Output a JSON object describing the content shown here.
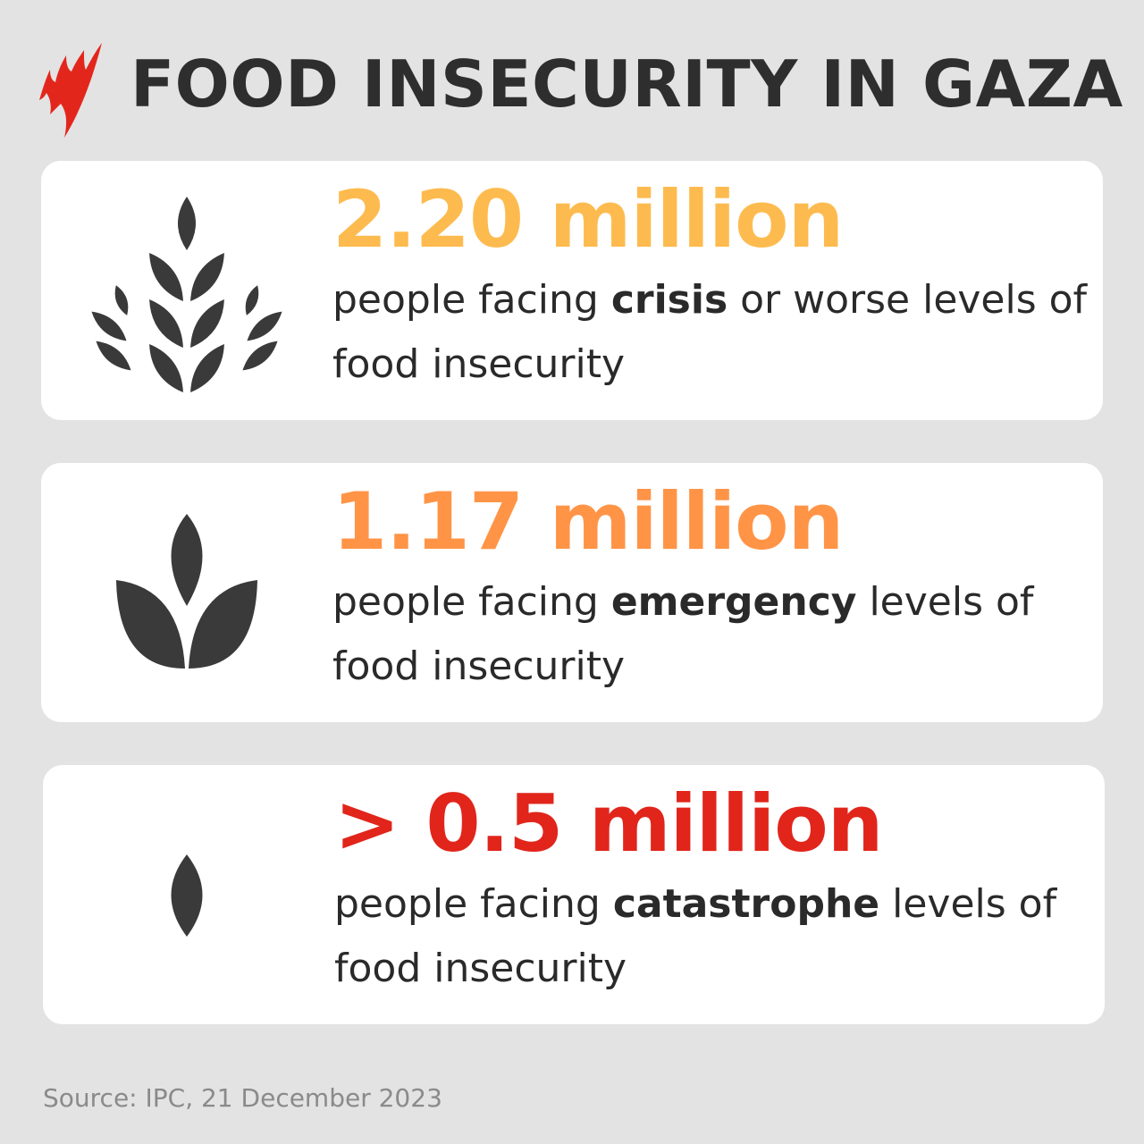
{
  "header": {
    "logo": "SBS",
    "title": "FOOD INSECURITY IN GAZA"
  },
  "colors": {
    "background": "#e3e3e3",
    "logo": "#e3261c",
    "icon": "#3a3a3a",
    "crisis": "#fdbb4f",
    "emergency": "#ff9447",
    "catastrophe": "#e1251b"
  },
  "cards": [
    {
      "icon": "wheat-large-icon",
      "number": "2.20 million",
      "pre": "people facing ",
      "bold": "crisis",
      "post": " or worse levels of food insecurity"
    },
    {
      "icon": "sprout-icon",
      "number": "1.17 million",
      "pre": "people facing ",
      "bold": "emergency",
      "post": " levels of food insecurity"
    },
    {
      "icon": "seed-icon",
      "number": "> 0.5 million",
      "pre": "people facing ",
      "bold": "catastrophe",
      "post": " levels of food insecurity"
    }
  ],
  "footer": {
    "source": "Source: IPC, 21 December 2023"
  }
}
